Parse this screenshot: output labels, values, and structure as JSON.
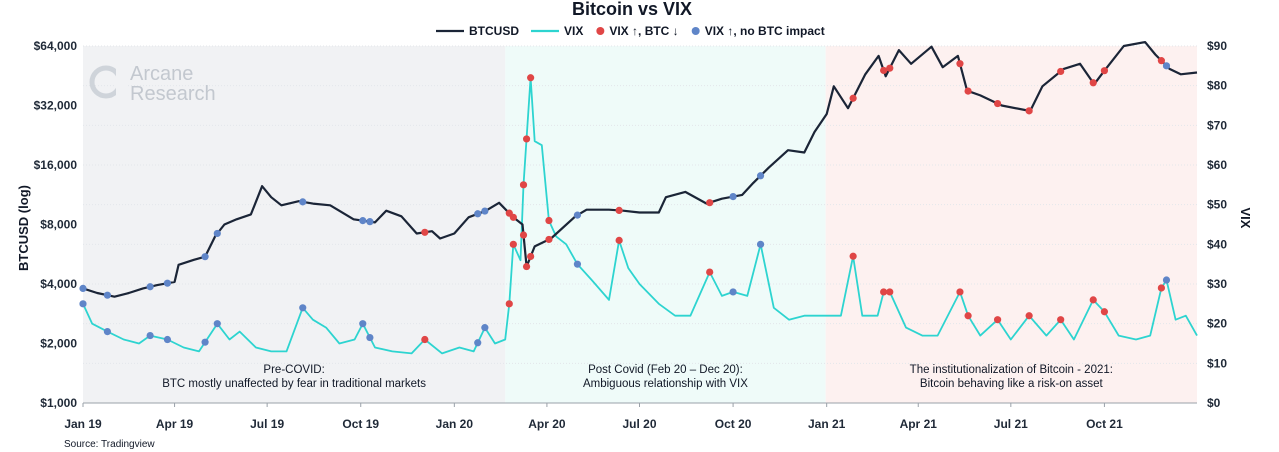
{
  "chart_data": {
    "type": "line",
    "title": "Bitcoin vs VIX",
    "source": "Source: Tradingview",
    "watermark": [
      "Arcane",
      "Research"
    ],
    "ylabel_left": "BTCUSD (log)",
    "ylabel_right": "VIX",
    "y_left_scale": "log",
    "y_left_range": [
      1000,
      64000
    ],
    "y_left_ticks": [
      1000,
      2000,
      4000,
      8000,
      16000,
      32000,
      64000
    ],
    "y_left_tick_labels": [
      "$1,000",
      "$2,000",
      "$4,000",
      "$8,000",
      "$16,000",
      "$32,000",
      "$64,000"
    ],
    "y_right_range": [
      0,
      90
    ],
    "y_right_ticks": [
      0,
      10,
      20,
      30,
      40,
      50,
      60,
      70,
      80,
      90
    ],
    "y_right_tick_labels": [
      "$0",
      "$10",
      "$20",
      "$30",
      "$40",
      "$50",
      "$60",
      "$70",
      "$80",
      "$90"
    ],
    "x_range": [
      "2019-01-01",
      "2021-12-31"
    ],
    "x_ticks": [
      "2019-01-01",
      "2019-04-01",
      "2019-07-01",
      "2019-10-01",
      "2020-01-01",
      "2020-04-01",
      "2020-07-01",
      "2020-10-01",
      "2021-01-01",
      "2021-04-01",
      "2021-07-01",
      "2021-10-01"
    ],
    "x_tick_labels": [
      "Jan 19",
      "Apr 19",
      "Jul 19",
      "Oct 19",
      "Jan 20",
      "Apr 20",
      "Jul 20",
      "Oct 20",
      "Jan 21",
      "Apr 21",
      "Jul 21",
      "Oct 21"
    ],
    "legend": [
      {
        "label": "BTCUSD",
        "kind": "line",
        "color": "#1b2537"
      },
      {
        "label": "VIX",
        "kind": "line",
        "color": "#2dd4d0"
      },
      {
        "label": "VIX ↑, BTC ↓",
        "kind": "dot",
        "color": "#e04646"
      },
      {
        "label": "VIX ↑, no BTC impact",
        "kind": "dot",
        "color": "#5f85c8"
      }
    ],
    "legend_position": "top-center",
    "regions": [
      {
        "from": "2019-01-01",
        "to": "2020-02-20",
        "color": "#f1f2f4",
        "label": [
          "Pre-COVID:",
          "BTC mostly unaffected by fear in traditional markets"
        ]
      },
      {
        "from": "2020-02-20",
        "to": "2020-12-31",
        "color": "#effbf9",
        "label": [
          "Post Covid (Feb 20 – Dec 20):",
          "Ambiguous relationship with VIX"
        ]
      },
      {
        "from": "2020-12-31",
        "to": "2021-12-31",
        "color": "#fdf1f0",
        "label": [
          "The institutionalization of Bitcoin - 2021:",
          "Bitcoin behaving like a risk-on asset"
        ]
      }
    ],
    "series": [
      {
        "name": "BTCUSD",
        "axis": "left",
        "color": "#1b2537",
        "points": [
          [
            "2019-01-01",
            3800
          ],
          [
            "2019-01-15",
            3600
          ],
          [
            "2019-02-01",
            3450
          ],
          [
            "2019-02-15",
            3600
          ],
          [
            "2019-03-01",
            3800
          ],
          [
            "2019-03-15",
            3950
          ],
          [
            "2019-04-01",
            4100
          ],
          [
            "2019-04-05",
            5000
          ],
          [
            "2019-04-20",
            5300
          ],
          [
            "2019-05-01",
            5500
          ],
          [
            "2019-05-11",
            7000
          ],
          [
            "2019-05-20",
            8000
          ],
          [
            "2019-06-01",
            8500
          ],
          [
            "2019-06-15",
            9000
          ],
          [
            "2019-06-26",
            12500
          ],
          [
            "2019-07-05",
            11000
          ],
          [
            "2019-07-15",
            10000
          ],
          [
            "2019-08-01",
            10500
          ],
          [
            "2019-08-15",
            10200
          ],
          [
            "2019-09-01",
            10000
          ],
          [
            "2019-09-24",
            8500
          ],
          [
            "2019-10-15",
            8200
          ],
          [
            "2019-10-26",
            9400
          ],
          [
            "2019-11-10",
            8800
          ],
          [
            "2019-11-25",
            7200
          ],
          [
            "2019-12-10",
            7400
          ],
          [
            "2019-12-18",
            6800
          ],
          [
            "2020-01-01",
            7200
          ],
          [
            "2020-01-15",
            8700
          ],
          [
            "2020-02-01",
            9400
          ],
          [
            "2020-02-14",
            10300
          ],
          [
            "2020-02-28",
            8700
          ],
          [
            "2020-03-08",
            8000
          ],
          [
            "2020-03-12",
            4900
          ],
          [
            "2020-03-20",
            6200
          ],
          [
            "2020-04-05",
            6800
          ],
          [
            "2020-04-29",
            8800
          ],
          [
            "2020-05-10",
            9500
          ],
          [
            "2020-06-01",
            9500
          ],
          [
            "2020-06-15",
            9400
          ],
          [
            "2020-07-01",
            9200
          ],
          [
            "2020-07-20",
            9200
          ],
          [
            "2020-07-27",
            11000
          ],
          [
            "2020-08-15",
            11700
          ],
          [
            "2020-09-05",
            10200
          ],
          [
            "2020-09-20",
            10800
          ],
          [
            "2020-10-10",
            11300
          ],
          [
            "2020-10-21",
            13000
          ],
          [
            "2020-11-05",
            15500
          ],
          [
            "2020-11-24",
            19000
          ],
          [
            "2020-12-10",
            18500
          ],
          [
            "2020-12-20",
            23500
          ],
          [
            "2021-01-01",
            29000
          ],
          [
            "2021-01-08",
            40000
          ],
          [
            "2021-01-22",
            31000
          ],
          [
            "2021-02-08",
            46000
          ],
          [
            "2021-02-21",
            57000
          ],
          [
            "2021-02-28",
            45000
          ],
          [
            "2021-03-13",
            61000
          ],
          [
            "2021-03-25",
            52000
          ],
          [
            "2021-04-14",
            63500
          ],
          [
            "2021-04-25",
            50000
          ],
          [
            "2021-05-10",
            57000
          ],
          [
            "2021-05-19",
            38000
          ],
          [
            "2021-06-01",
            36000
          ],
          [
            "2021-06-22",
            32000
          ],
          [
            "2021-07-20",
            30000
          ],
          [
            "2021-08-01",
            40000
          ],
          [
            "2021-08-22",
            49000
          ],
          [
            "2021-09-07",
            52000
          ],
          [
            "2021-09-21",
            41000
          ],
          [
            "2021-10-01",
            48000
          ],
          [
            "2021-10-20",
            64000
          ],
          [
            "2021-11-10",
            67000
          ],
          [
            "2021-11-20",
            58000
          ],
          [
            "2021-12-04",
            49000
          ],
          [
            "2021-12-15",
            46000
          ],
          [
            "2021-12-31",
            47000
          ]
        ]
      },
      {
        "name": "VIX",
        "axis": "right",
        "color": "#2dd4d0",
        "points": [
          [
            "2019-01-01",
            25
          ],
          [
            "2019-01-10",
            20
          ],
          [
            "2019-01-25",
            18
          ],
          [
            "2019-02-10",
            16
          ],
          [
            "2019-02-25",
            15
          ],
          [
            "2019-03-08",
            17
          ],
          [
            "2019-03-25",
            16
          ],
          [
            "2019-04-10",
            14
          ],
          [
            "2019-04-25",
            13
          ],
          [
            "2019-05-13",
            20
          ],
          [
            "2019-05-25",
            16
          ],
          [
            "2019-06-04",
            18
          ],
          [
            "2019-06-20",
            14
          ],
          [
            "2019-07-05",
            13
          ],
          [
            "2019-07-20",
            13
          ],
          [
            "2019-08-05",
            24
          ],
          [
            "2019-08-15",
            21
          ],
          [
            "2019-08-28",
            19
          ],
          [
            "2019-09-10",
            15
          ],
          [
            "2019-09-25",
            16
          ],
          [
            "2019-10-03",
            20
          ],
          [
            "2019-10-15",
            14
          ],
          [
            "2019-11-01",
            13
          ],
          [
            "2019-11-20",
            12.5
          ],
          [
            "2019-12-03",
            16
          ],
          [
            "2019-12-20",
            12.5
          ],
          [
            "2020-01-06",
            14
          ],
          [
            "2020-01-20",
            13
          ],
          [
            "2020-01-31",
            19
          ],
          [
            "2020-02-10",
            15
          ],
          [
            "2020-02-20",
            16
          ],
          [
            "2020-02-24",
            25
          ],
          [
            "2020-02-28",
            40
          ],
          [
            "2020-03-06",
            36
          ],
          [
            "2020-03-09",
            55
          ],
          [
            "2020-03-16",
            82
          ],
          [
            "2020-03-20",
            66
          ],
          [
            "2020-03-27",
            65
          ],
          [
            "2020-04-03",
            46
          ],
          [
            "2020-04-10",
            42
          ],
          [
            "2020-04-20",
            40
          ],
          [
            "2020-05-01",
            35
          ],
          [
            "2020-05-15",
            31
          ],
          [
            "2020-06-01",
            26
          ],
          [
            "2020-06-11",
            41
          ],
          [
            "2020-06-20",
            34
          ],
          [
            "2020-07-01",
            30
          ],
          [
            "2020-07-20",
            25
          ],
          [
            "2020-08-05",
            22
          ],
          [
            "2020-08-20",
            22
          ],
          [
            "2020-09-08",
            33
          ],
          [
            "2020-09-20",
            27
          ],
          [
            "2020-10-01",
            28
          ],
          [
            "2020-10-15",
            27
          ],
          [
            "2020-10-28",
            40
          ],
          [
            "2020-11-10",
            24
          ],
          [
            "2020-11-25",
            21
          ],
          [
            "2020-12-10",
            22
          ],
          [
            "2020-12-28",
            22
          ],
          [
            "2021-01-15",
            22
          ],
          [
            "2021-01-27",
            37
          ],
          [
            "2021-02-05",
            22
          ],
          [
            "2021-02-20",
            22
          ],
          [
            "2021-02-26",
            28
          ],
          [
            "2021-03-04",
            28
          ],
          [
            "2021-03-20",
            19
          ],
          [
            "2021-04-05",
            17
          ],
          [
            "2021-04-20",
            17
          ],
          [
            "2021-05-12",
            28
          ],
          [
            "2021-05-20",
            22
          ],
          [
            "2021-06-01",
            17
          ],
          [
            "2021-06-18",
            21
          ],
          [
            "2021-07-01",
            16
          ],
          [
            "2021-07-19",
            22
          ],
          [
            "2021-08-05",
            17
          ],
          [
            "2021-08-19",
            21
          ],
          [
            "2021-09-01",
            16
          ],
          [
            "2021-09-20",
            26
          ],
          [
            "2021-10-01",
            23
          ],
          [
            "2021-10-15",
            17
          ],
          [
            "2021-11-01",
            16
          ],
          [
            "2021-11-15",
            17
          ],
          [
            "2021-11-26",
            29
          ],
          [
            "2021-12-01",
            31
          ],
          [
            "2021-12-10",
            21
          ],
          [
            "2021-12-20",
            22
          ],
          [
            "2021-12-31",
            17
          ]
        ]
      }
    ],
    "markers_vix_up_btc_down": {
      "color": "#e04646",
      "dates": [
        "2019-12-03",
        "2020-02-24",
        "2020-02-28",
        "2020-03-09",
        "2020-03-12",
        "2020-03-16",
        "2020-04-03",
        "2020-06-11",
        "2020-09-08",
        "2021-01-27",
        "2021-02-26",
        "2021-03-04",
        "2021-05-12",
        "2021-05-20",
        "2021-06-18",
        "2021-07-19",
        "2021-08-19",
        "2021-09-20",
        "2021-10-01",
        "2021-11-26"
      ]
    },
    "markers_vix_up_no_btc_impact": {
      "color": "#5f85c8",
      "dates": [
        "2019-01-01",
        "2019-01-25",
        "2019-03-08",
        "2019-03-25",
        "2019-05-01",
        "2019-05-13",
        "2019-08-05",
        "2019-10-03",
        "2019-10-10",
        "2020-01-24",
        "2020-01-31",
        "2020-05-01",
        "2020-10-01",
        "2020-10-28",
        "2021-12-01"
      ]
    }
  }
}
